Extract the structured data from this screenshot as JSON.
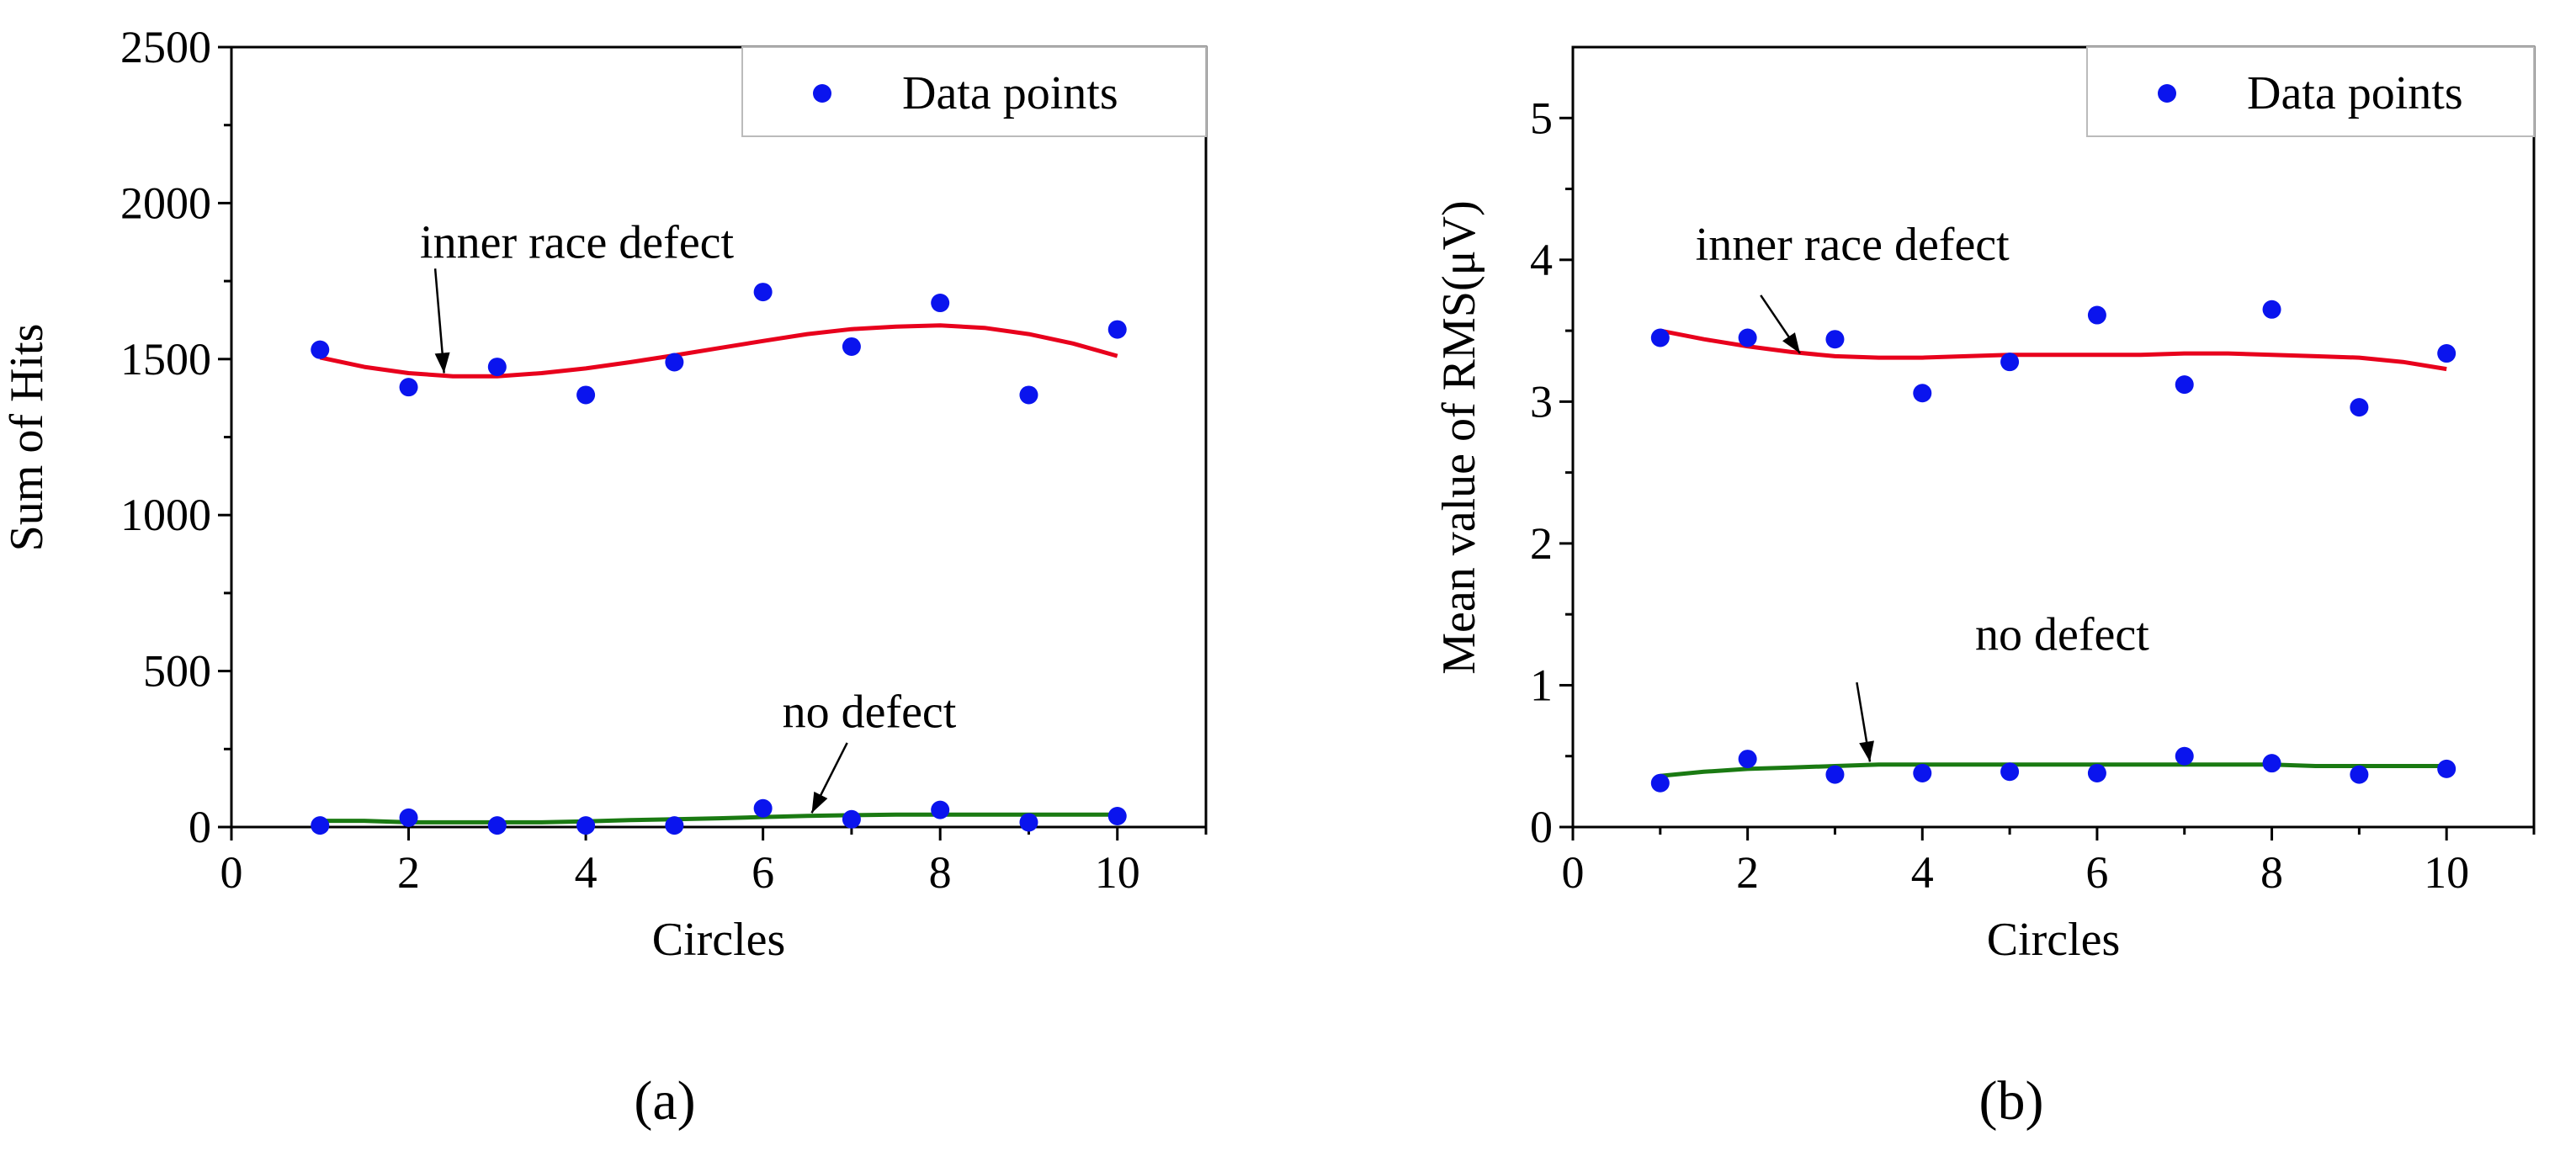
{
  "colors": {
    "points": "#0a14ee",
    "inner_race_curve": "#e8001c",
    "no_defect_curve": "#1a7a12",
    "axis": "#000000"
  },
  "chart_data": [
    {
      "id": "a",
      "type": "scatter",
      "panel_label": "(a)",
      "xlabel": "Circles",
      "ylabel": "Sum of Hits",
      "xlim": [
        0,
        11
      ],
      "ylim": [
        0,
        2500
      ],
      "xticks": [
        0,
        2,
        4,
        6,
        8,
        10
      ],
      "yticks": [
        0,
        500,
        1000,
        1500,
        2000,
        2500
      ],
      "legend": {
        "label": "Data points",
        "position": "top-right"
      },
      "series": [
        {
          "name": "inner race defect",
          "kind": "points",
          "x": [
            1,
            2,
            3,
            4,
            5,
            6,
            7,
            8,
            9,
            10
          ],
          "y": [
            1530,
            1410,
            1475,
            1385,
            1490,
            1715,
            1540,
            1680,
            1385,
            1595
          ]
        },
        {
          "name": "no defect",
          "kind": "points",
          "x": [
            1,
            2,
            3,
            4,
            5,
            6,
            7,
            8,
            9,
            10
          ],
          "y": [
            5,
            30,
            5,
            5,
            5,
            60,
            25,
            55,
            15,
            35
          ]
        },
        {
          "name": "inner race defect fit",
          "kind": "curve",
          "x": [
            1,
            1.5,
            2,
            2.5,
            3,
            3.5,
            4,
            4.5,
            5,
            5.5,
            6,
            6.5,
            7,
            7.5,
            8,
            8.5,
            9,
            9.5,
            10
          ],
          "y": [
            1505,
            1475,
            1455,
            1445,
            1445,
            1455,
            1470,
            1490,
            1512,
            1535,
            1558,
            1580,
            1596,
            1604,
            1608,
            1600,
            1580,
            1550,
            1510
          ]
        },
        {
          "name": "no defect fit",
          "kind": "curve",
          "x": [
            1,
            1.5,
            2,
            2.5,
            3,
            3.5,
            4,
            4.5,
            5,
            5.5,
            6,
            6.5,
            7,
            7.5,
            8,
            8.5,
            9,
            9.5,
            10
          ],
          "y": [
            20,
            20,
            15,
            15,
            15,
            15,
            18,
            22,
            25,
            28,
            32,
            36,
            38,
            40,
            40,
            40,
            40,
            40,
            40
          ]
        }
      ],
      "annotations": [
        {
          "text": "inner race defect",
          "x": 3.9,
          "y": 1825
        },
        {
          "text": "no defect",
          "x": 7.2,
          "y": 320
        }
      ]
    },
    {
      "id": "b",
      "type": "scatter",
      "panel_label": "(b)",
      "xlabel": "Circles",
      "ylabel": "Mean value of RMS(μV)",
      "xlim": [
        0,
        11
      ],
      "ylim": [
        0,
        5.5
      ],
      "xticks": [
        0,
        2,
        4,
        6,
        8,
        10
      ],
      "yticks": [
        0,
        1,
        2,
        3,
        4,
        5
      ],
      "legend": {
        "label": "Data points",
        "position": "top-right"
      },
      "series": [
        {
          "name": "inner race defect",
          "kind": "points",
          "x": [
            1,
            2,
            3,
            4,
            5,
            6,
            7,
            8,
            9,
            10
          ],
          "y": [
            3.45,
            3.45,
            3.44,
            3.06,
            3.28,
            3.61,
            3.12,
            3.65,
            2.96,
            3.34
          ]
        },
        {
          "name": "no defect",
          "kind": "points",
          "x": [
            1,
            2,
            3,
            4,
            5,
            6,
            7,
            8,
            9,
            10
          ],
          "y": [
            0.31,
            0.48,
            0.37,
            0.38,
            0.39,
            0.38,
            0.5,
            0.45,
            0.37,
            0.41
          ]
        },
        {
          "name": "inner race defect fit",
          "kind": "curve",
          "x": [
            1,
            1.5,
            2,
            2.5,
            3,
            3.5,
            4,
            4.5,
            5,
            5.5,
            6,
            6.5,
            7,
            7.5,
            8,
            8.5,
            9,
            9.5,
            10
          ],
          "y": [
            3.5,
            3.44,
            3.39,
            3.35,
            3.32,
            3.31,
            3.31,
            3.32,
            3.33,
            3.33,
            3.33,
            3.33,
            3.34,
            3.34,
            3.33,
            3.32,
            3.31,
            3.28,
            3.23
          ]
        },
        {
          "name": "no defect fit",
          "kind": "curve",
          "x": [
            1,
            1.5,
            2,
            2.5,
            3,
            3.5,
            4,
            4.5,
            5,
            5.5,
            6,
            6.5,
            7,
            7.5,
            8,
            8.5,
            9,
            9.5,
            10
          ],
          "y": [
            0.36,
            0.39,
            0.41,
            0.42,
            0.43,
            0.44,
            0.44,
            0.44,
            0.44,
            0.44,
            0.44,
            0.44,
            0.44,
            0.44,
            0.44,
            0.43,
            0.43,
            0.43,
            0.43
          ]
        }
      ],
      "annotations": [
        {
          "text": "inner race defect",
          "x": 3.2,
          "y": 4.0
        },
        {
          "text": "no defect",
          "x": 5.6,
          "y": 1.25
        }
      ]
    }
  ]
}
